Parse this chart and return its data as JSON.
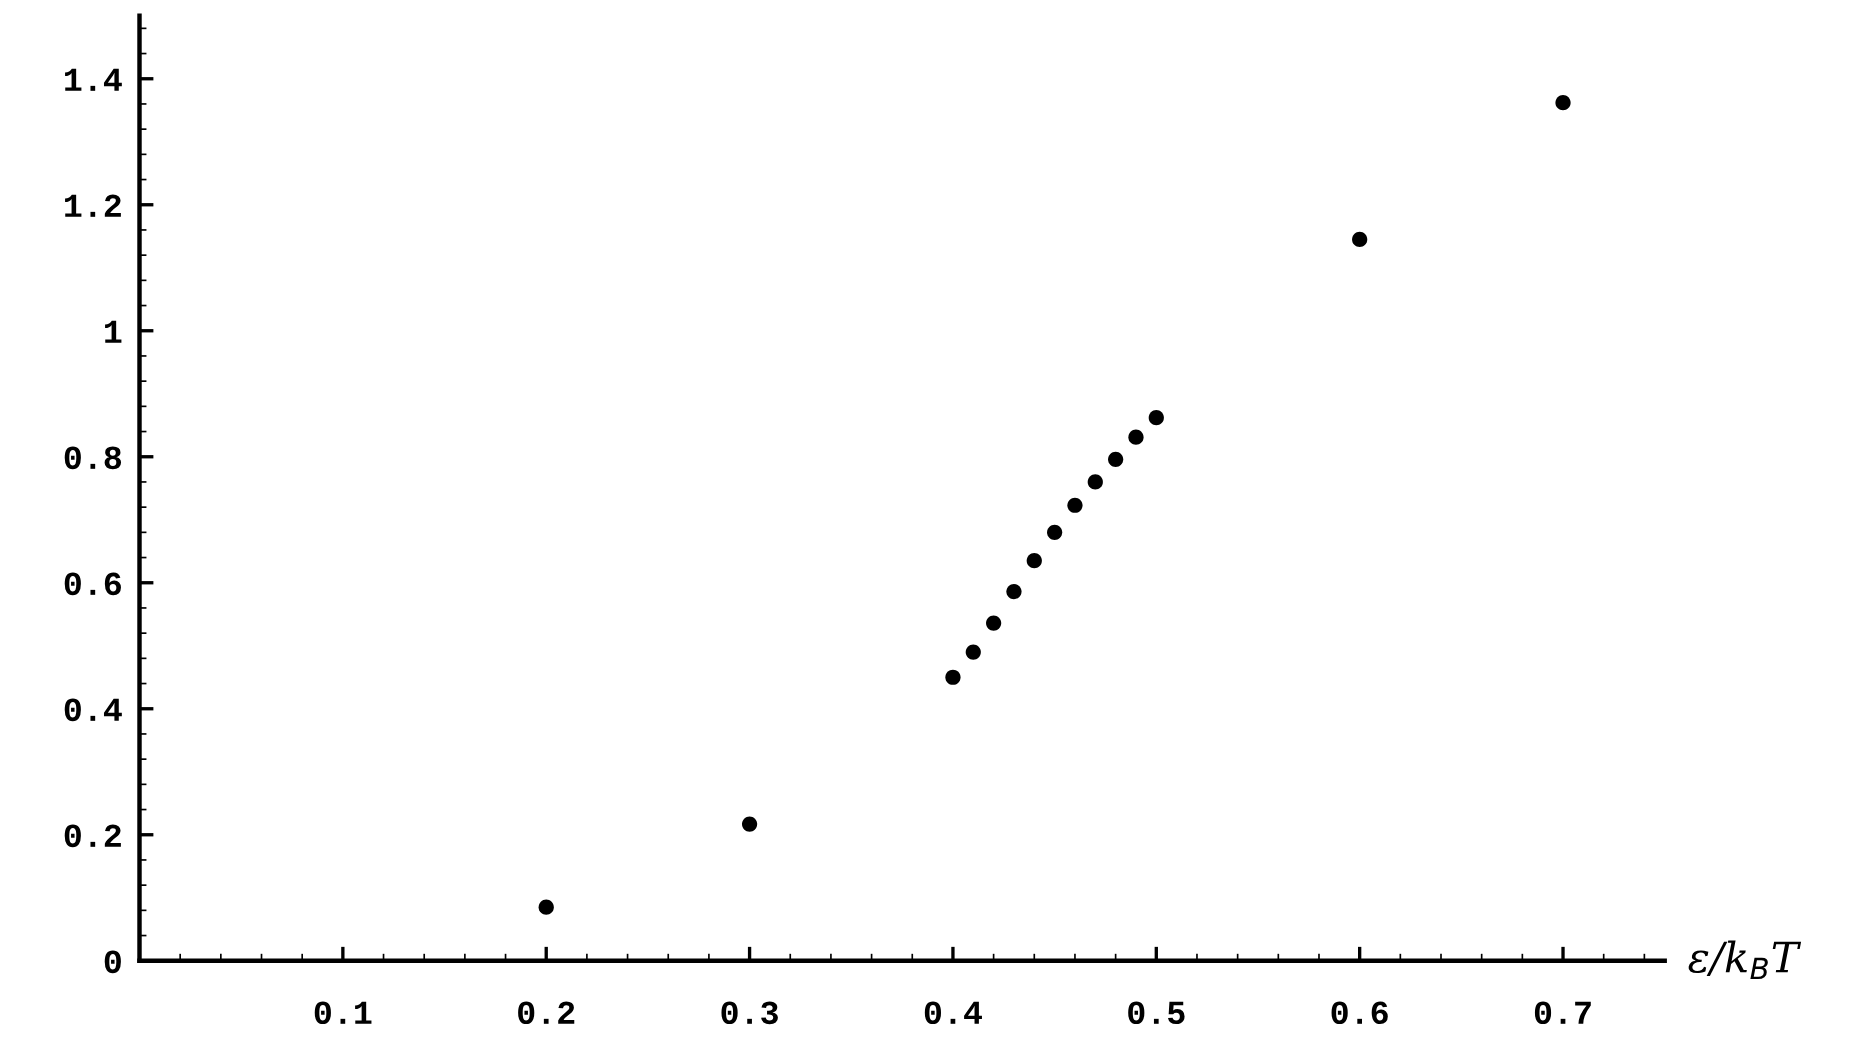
{
  "chart_data": {
    "type": "scatter",
    "xlabel": "ε/k$_{B}$T",
    "x": [
      0.2,
      0.3,
      0.4,
      0.41,
      0.42,
      0.43,
      0.44,
      0.45,
      0.46,
      0.47,
      0.48,
      0.49,
      0.5,
      0.6,
      0.7
    ],
    "values": [
      0.085,
      0.217,
      0.45,
      0.49,
      0.536,
      0.586,
      0.635,
      0.68,
      0.723,
      0.76,
      0.796,
      0.831,
      0.862,
      1.145,
      1.362
    ],
    "color": "#000000",
    "marker": "circle",
    "xlim": [
      0,
      0.75
    ],
    "ylim": [
      0,
      1.5
    ],
    "xticks": [
      0.1,
      0.2,
      0.3,
      0.4,
      0.5,
      0.6,
      0.7
    ],
    "yticks": [
      0,
      0.2,
      0.4,
      0.6,
      0.8,
      1,
      1.2,
      1.4
    ],
    "grid": false
  }
}
